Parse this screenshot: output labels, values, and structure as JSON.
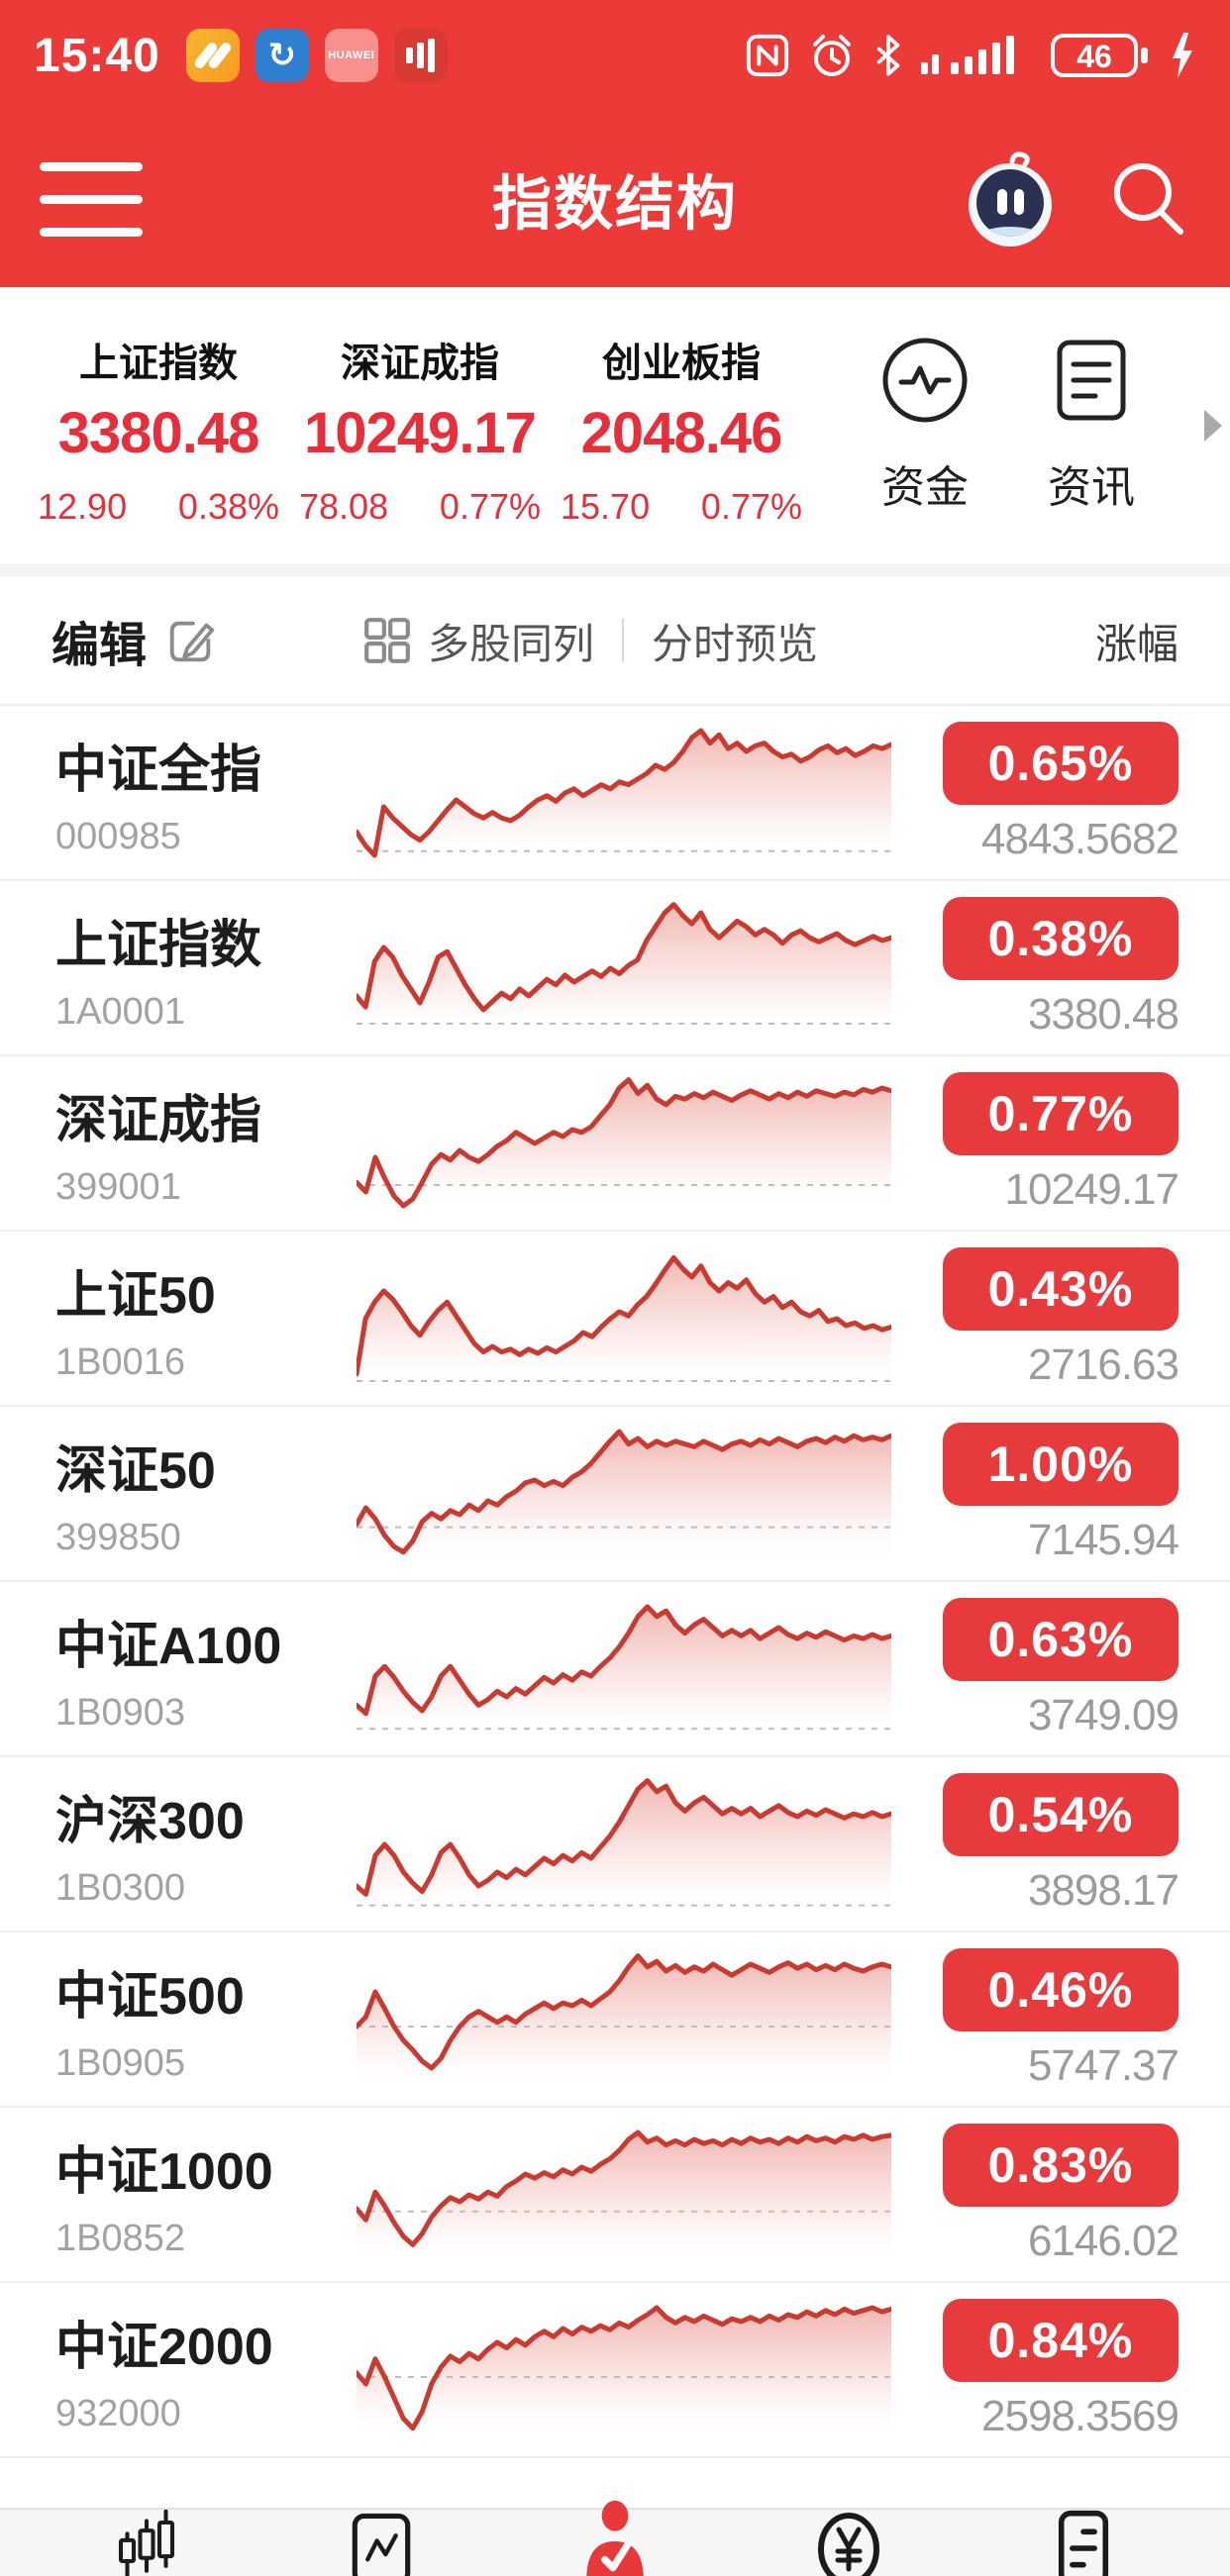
{
  "status_bar": {
    "time": "15:40",
    "battery_level": "46",
    "app2_glyph": "↻",
    "app3_label": "HUAWEI"
  },
  "header": {
    "title": "指数结构"
  },
  "summary": {
    "indices": [
      {
        "name": "上证指数",
        "value": "3380.48",
        "change": "12.90",
        "pct": "0.38%"
      },
      {
        "name": "深证成指",
        "value": "10249.17",
        "change": "78.08",
        "pct": "0.77%"
      },
      {
        "name": "创业板指",
        "value": "2048.46",
        "change": "15.70",
        "pct": "0.77%"
      }
    ],
    "shortcuts": [
      {
        "label": "资金"
      },
      {
        "label": "资讯"
      }
    ]
  },
  "toolbar": {
    "edit_label": "编辑",
    "multi_column_label": "多股同列",
    "minute_preview_label": "分时预览",
    "sort_label": "涨幅"
  },
  "colors": {
    "primary_red": "#ec3a38",
    "badge_red": "#e63a3c",
    "spark_line_red": "#c93a31",
    "quote_red": "#e62f3b"
  },
  "rows": [
    {
      "name": "中证全指",
      "code": "000985",
      "pct": "0.65%",
      "value": "4843.5682",
      "baseline": 0.92,
      "points": [
        0.78,
        0.88,
        0.95,
        0.6,
        0.68,
        0.74,
        0.8,
        0.84,
        0.78,
        0.7,
        0.62,
        0.55,
        0.6,
        0.65,
        0.68,
        0.64,
        0.68,
        0.7,
        0.66,
        0.6,
        0.55,
        0.52,
        0.56,
        0.5,
        0.47,
        0.52,
        0.48,
        0.44,
        0.47,
        0.42,
        0.44,
        0.4,
        0.36,
        0.3,
        0.33,
        0.28,
        0.2,
        0.1,
        0.05,
        0.14,
        0.08,
        0.18,
        0.14,
        0.2,
        0.16,
        0.14,
        0.2,
        0.24,
        0.22,
        0.27,
        0.24,
        0.19,
        0.16,
        0.21,
        0.18,
        0.23,
        0.2,
        0.16,
        0.18,
        0.15
      ]
    },
    {
      "name": "上证指数",
      "code": "1A0001",
      "pct": "0.38%",
      "value": "3380.48",
      "baseline": 0.9,
      "points": [
        0.7,
        0.78,
        0.45,
        0.35,
        0.42,
        0.55,
        0.65,
        0.75,
        0.6,
        0.42,
        0.38,
        0.5,
        0.62,
        0.72,
        0.8,
        0.74,
        0.68,
        0.72,
        0.65,
        0.7,
        0.64,
        0.58,
        0.62,
        0.55,
        0.6,
        0.56,
        0.52,
        0.56,
        0.5,
        0.54,
        0.48,
        0.44,
        0.3,
        0.2,
        0.1,
        0.04,
        0.12,
        0.18,
        0.1,
        0.22,
        0.28,
        0.22,
        0.16,
        0.2,
        0.26,
        0.22,
        0.26,
        0.32,
        0.26,
        0.23,
        0.28,
        0.31,
        0.28,
        0.25,
        0.3,
        0.33,
        0.3,
        0.27,
        0.3,
        0.28
      ]
    },
    {
      "name": "深证成指",
      "code": "399001",
      "pct": "0.77%",
      "value": "10249.17",
      "baseline": 0.8,
      "points": [
        0.78,
        0.85,
        0.6,
        0.75,
        0.88,
        0.95,
        0.9,
        0.78,
        0.65,
        0.58,
        0.62,
        0.55,
        0.6,
        0.63,
        0.58,
        0.52,
        0.48,
        0.42,
        0.46,
        0.5,
        0.46,
        0.42,
        0.45,
        0.4,
        0.42,
        0.38,
        0.3,
        0.22,
        0.1,
        0.04,
        0.14,
        0.08,
        0.18,
        0.22,
        0.16,
        0.18,
        0.14,
        0.17,
        0.13,
        0.16,
        0.19,
        0.15,
        0.12,
        0.15,
        0.18,
        0.14,
        0.17,
        0.13,
        0.16,
        0.12,
        0.14,
        0.16,
        0.13,
        0.15,
        0.11,
        0.13,
        0.1,
        0.12
      ]
    },
    {
      "name": "上证50",
      "code": "1B0016",
      "pct": "0.43%",
      "value": "2716.63",
      "baseline": 0.95,
      "points": [
        0.9,
        0.5,
        0.38,
        0.3,
        0.36,
        0.45,
        0.55,
        0.62,
        0.52,
        0.44,
        0.38,
        0.48,
        0.58,
        0.68,
        0.74,
        0.7,
        0.74,
        0.72,
        0.76,
        0.72,
        0.75,
        0.71,
        0.74,
        0.7,
        0.66,
        0.6,
        0.63,
        0.56,
        0.5,
        0.45,
        0.48,
        0.4,
        0.34,
        0.25,
        0.15,
        0.06,
        0.14,
        0.2,
        0.12,
        0.24,
        0.3,
        0.24,
        0.28,
        0.22,
        0.32,
        0.38,
        0.34,
        0.42,
        0.38,
        0.45,
        0.48,
        0.44,
        0.52,
        0.5,
        0.55,
        0.53,
        0.57,
        0.55,
        0.58,
        0.56
      ]
    },
    {
      "name": "深证50",
      "code": "399850",
      "pct": "1.00%",
      "value": "7145.94",
      "baseline": 0.74,
      "points": [
        0.72,
        0.6,
        0.68,
        0.8,
        0.88,
        0.92,
        0.84,
        0.7,
        0.64,
        0.68,
        0.62,
        0.65,
        0.58,
        0.62,
        0.55,
        0.58,
        0.52,
        0.48,
        0.42,
        0.4,
        0.44,
        0.41,
        0.44,
        0.38,
        0.34,
        0.28,
        0.2,
        0.12,
        0.05,
        0.14,
        0.1,
        0.16,
        0.12,
        0.15,
        0.12,
        0.14,
        0.16,
        0.12,
        0.15,
        0.18,
        0.14,
        0.12,
        0.15,
        0.11,
        0.14,
        0.1,
        0.13,
        0.16,
        0.12,
        0.1,
        0.13,
        0.09,
        0.12,
        0.08,
        0.11,
        0.09,
        0.11,
        0.08
      ]
    },
    {
      "name": "中证A100",
      "code": "1B0903",
      "pct": "0.63%",
      "value": "3749.09",
      "baseline": 0.93,
      "points": [
        0.76,
        0.82,
        0.55,
        0.48,
        0.56,
        0.66,
        0.74,
        0.8,
        0.7,
        0.55,
        0.48,
        0.58,
        0.68,
        0.76,
        0.72,
        0.66,
        0.7,
        0.64,
        0.68,
        0.62,
        0.56,
        0.6,
        0.54,
        0.58,
        0.52,
        0.55,
        0.48,
        0.42,
        0.34,
        0.24,
        0.12,
        0.05,
        0.12,
        0.08,
        0.18,
        0.24,
        0.18,
        0.14,
        0.2,
        0.26,
        0.22,
        0.26,
        0.22,
        0.28,
        0.24,
        0.2,
        0.25,
        0.28,
        0.24,
        0.27,
        0.23,
        0.26,
        0.29,
        0.26,
        0.28,
        0.25,
        0.28,
        0.26
      ]
    },
    {
      "name": "沪深300",
      "code": "1B0300",
      "pct": "0.54%",
      "value": "3898.17",
      "baseline": 0.94,
      "points": [
        0.8,
        0.86,
        0.58,
        0.5,
        0.58,
        0.7,
        0.78,
        0.84,
        0.72,
        0.56,
        0.5,
        0.6,
        0.72,
        0.8,
        0.76,
        0.7,
        0.74,
        0.68,
        0.72,
        0.66,
        0.6,
        0.64,
        0.58,
        0.62,
        0.56,
        0.6,
        0.52,
        0.44,
        0.34,
        0.22,
        0.1,
        0.04,
        0.12,
        0.08,
        0.2,
        0.26,
        0.2,
        0.16,
        0.22,
        0.28,
        0.24,
        0.28,
        0.24,
        0.3,
        0.26,
        0.22,
        0.27,
        0.3,
        0.26,
        0.29,
        0.25,
        0.28,
        0.31,
        0.28,
        0.3,
        0.27,
        0.3,
        0.28
      ]
    },
    {
      "name": "中证500",
      "code": "1B0905",
      "pct": "0.46%",
      "value": "5747.37",
      "baseline": 0.55,
      "points": [
        0.55,
        0.48,
        0.3,
        0.42,
        0.55,
        0.65,
        0.72,
        0.8,
        0.85,
        0.78,
        0.65,
        0.55,
        0.48,
        0.44,
        0.48,
        0.52,
        0.48,
        0.52,
        0.46,
        0.42,
        0.38,
        0.42,
        0.38,
        0.4,
        0.36,
        0.4,
        0.35,
        0.3,
        0.22,
        0.12,
        0.04,
        0.12,
        0.08,
        0.15,
        0.11,
        0.16,
        0.12,
        0.15,
        0.1,
        0.14,
        0.18,
        0.14,
        0.1,
        0.13,
        0.16,
        0.12,
        0.09,
        0.13,
        0.1,
        0.14,
        0.11,
        0.14,
        0.1,
        0.13,
        0.15,
        0.12,
        0.1,
        0.12
      ]
    },
    {
      "name": "中证1000",
      "code": "1B0852",
      "pct": "0.83%",
      "value": "6146.02",
      "baseline": 0.62,
      "points": [
        0.6,
        0.68,
        0.48,
        0.58,
        0.7,
        0.8,
        0.86,
        0.78,
        0.66,
        0.58,
        0.52,
        0.55,
        0.5,
        0.53,
        0.48,
        0.51,
        0.44,
        0.4,
        0.35,
        0.38,
        0.34,
        0.37,
        0.32,
        0.35,
        0.3,
        0.33,
        0.28,
        0.24,
        0.18,
        0.1,
        0.05,
        0.12,
        0.09,
        0.14,
        0.11,
        0.14,
        0.1,
        0.13,
        0.11,
        0.14,
        0.1,
        0.13,
        0.09,
        0.12,
        0.1,
        0.13,
        0.09,
        0.12,
        0.08,
        0.11,
        0.09,
        0.12,
        0.08,
        0.1,
        0.07,
        0.1,
        0.08,
        0.07
      ]
    },
    {
      "name": "中证2000",
      "code": "932000",
      "pct": "0.84%",
      "value": "2598.3569",
      "baseline": 0.55,
      "points": [
        0.52,
        0.6,
        0.42,
        0.55,
        0.7,
        0.85,
        0.92,
        0.8,
        0.6,
        0.48,
        0.4,
        0.44,
        0.38,
        0.42,
        0.35,
        0.3,
        0.34,
        0.28,
        0.32,
        0.26,
        0.22,
        0.26,
        0.2,
        0.24,
        0.19,
        0.22,
        0.18,
        0.21,
        0.16,
        0.19,
        0.14,
        0.1,
        0.05,
        0.12,
        0.16,
        0.12,
        0.15,
        0.11,
        0.14,
        0.17,
        0.13,
        0.15,
        0.12,
        0.15,
        0.11,
        0.14,
        0.1,
        0.12,
        0.08,
        0.11,
        0.07,
        0.1,
        0.06,
        0.09,
        0.07,
        0.05,
        0.08,
        0.06
      ]
    }
  ]
}
